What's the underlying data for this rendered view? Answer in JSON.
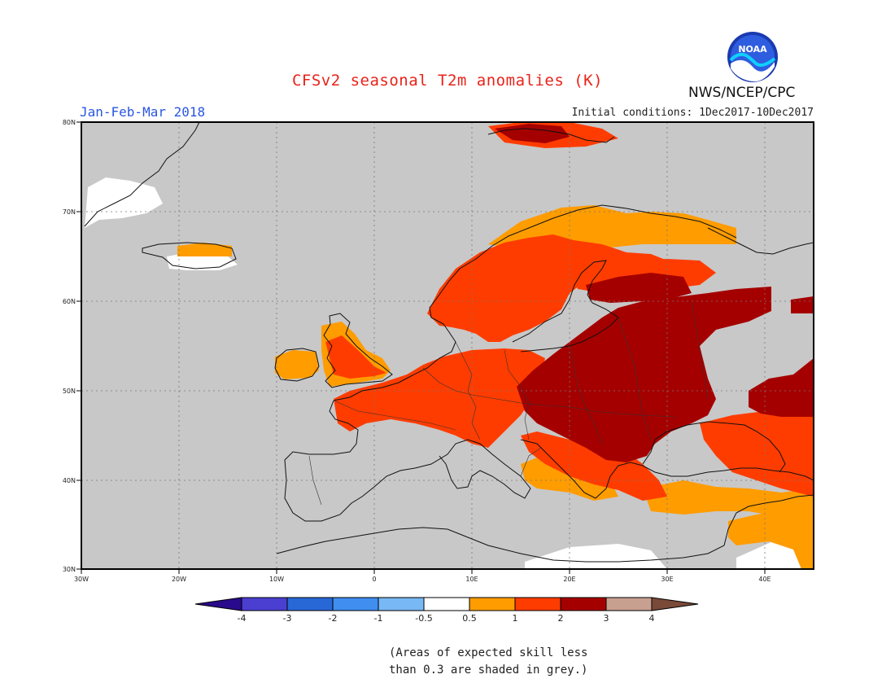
{
  "header": {
    "title": "CFSv2 seasonal T2m anomalies (K)",
    "period": "Jan-Feb-Mar 2018",
    "initial_conditions": "Initial conditions: 1Dec2017-10Dec2017",
    "agency": "NWS/NCEP/CPC",
    "logo_text": "NOAA"
  },
  "map": {
    "lon_range": [
      -30,
      45
    ],
    "lat_range": [
      30,
      80
    ],
    "lon_ticks": [
      "30W",
      "20W",
      "10W",
      "0",
      "10E",
      "20E",
      "30E",
      "40E"
    ],
    "lat_ticks": [
      "80N",
      "70N",
      "60N",
      "50N",
      "40N",
      "30N"
    ],
    "background_color": "#c8c8c8",
    "grid": true
  },
  "colorbar": {
    "labels": [
      "-4",
      "-3",
      "-2",
      "-1",
      "-0.5",
      "0.5",
      "1",
      "2",
      "3",
      "4"
    ],
    "colors": [
      "#2a0a8c",
      "#4a3fd0",
      "#2868d6",
      "#3f8ef0",
      "#78b8f4",
      "#ffffff",
      "#ff9c00",
      "#ff3c00",
      "#a50000",
      "#c8a090",
      "#7a4a38"
    ]
  },
  "footnote": {
    "line1": "(Areas of expected skill less",
    "line2": "than 0.3 are shaded in grey.)"
  }
}
